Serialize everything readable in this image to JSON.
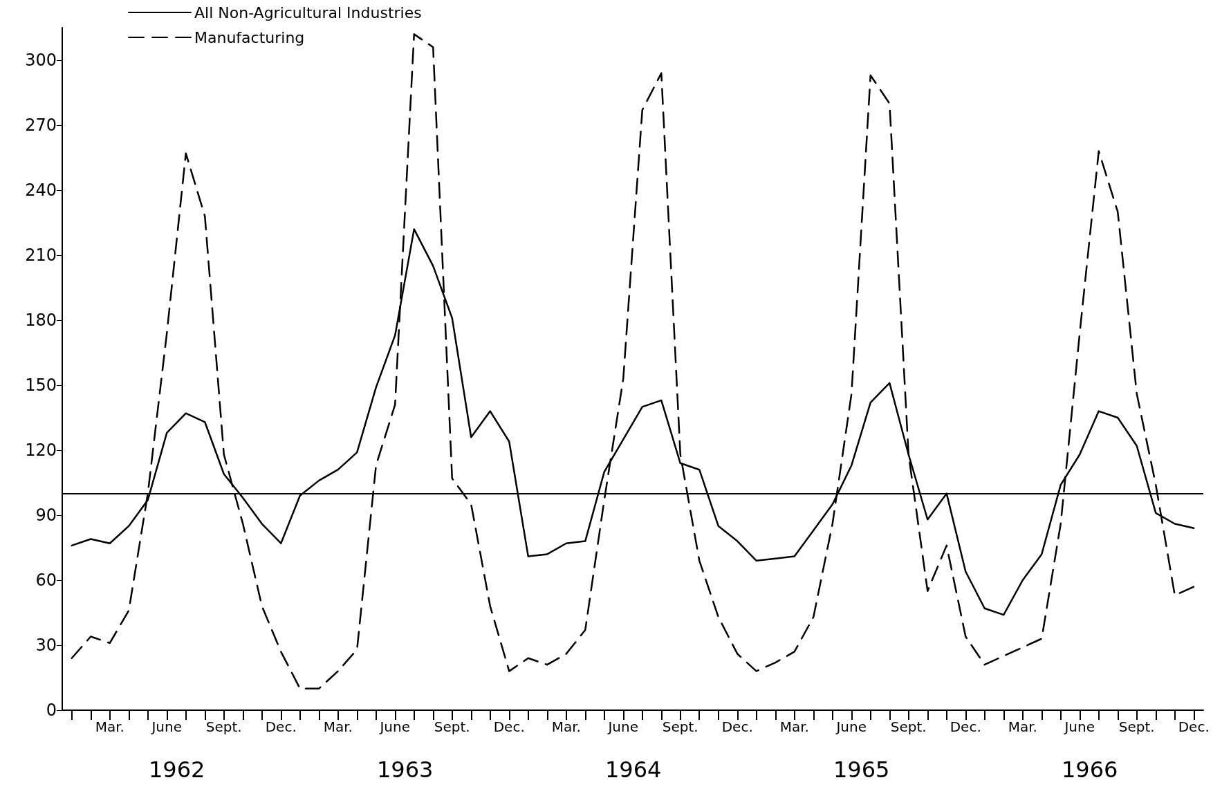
{
  "chart_data": {
    "type": "line",
    "categories": [
      null,
      null,
      "Mar.",
      null,
      null,
      "June",
      null,
      null,
      "Sept.",
      null,
      null,
      "Dec.",
      null,
      null,
      "Mar.",
      null,
      null,
      "June",
      null,
      null,
      "Sept.",
      null,
      null,
      "Dec.",
      null,
      null,
      "Mar.",
      null,
      null,
      "June",
      null,
      null,
      "Sept.",
      null,
      null,
      "Dec.",
      null,
      null,
      "Mar.",
      null,
      null,
      "June",
      null,
      null,
      "Sept.",
      null,
      null,
      "Dec.",
      null,
      null,
      "Mar.",
      null,
      null,
      "June",
      null,
      null,
      "Sept.",
      null,
      null,
      "Dec."
    ],
    "series": [
      {
        "name": "All Non-Agricultural Industries",
        "color": "#000000",
        "line_style": "solid",
        "values": [
          76,
          79,
          77,
          85,
          97,
          128,
          137,
          133,
          109,
          98,
          86,
          77,
          99,
          106,
          111,
          119,
          149,
          173,
          222,
          205,
          181,
          126,
          138,
          124,
          71,
          72,
          77,
          78,
          110,
          125,
          140,
          143,
          114,
          111,
          85,
          78,
          69,
          70,
          71,
          83,
          95,
          113,
          142,
          151,
          118,
          88,
          100,
          64,
          47,
          44,
          60,
          72,
          104,
          118,
          138,
          135,
          122,
          91,
          86,
          84
        ]
      },
      {
        "name": "Manufacturing",
        "color": "#000000",
        "line_style": "dashed",
        "values": [
          24,
          34,
          31,
          46,
          100,
          174,
          257,
          228,
          118,
          86,
          48,
          27,
          10,
          10,
          18,
          28,
          113,
          141,
          312,
          306,
          107,
          95,
          48,
          18,
          24,
          21,
          26,
          37,
          97,
          153,
          277,
          294,
          118,
          69,
          43,
          26,
          18,
          22,
          27,
          43,
          86,
          146,
          293,
          280,
          118,
          55,
          76,
          34,
          21,
          25,
          29,
          33,
          86,
          174,
          258,
          230,
          146,
          104,
          53,
          57
        ]
      }
    ],
    "ylim": [
      0,
      315
    ],
    "yticks": [
      0,
      30,
      60,
      90,
      120,
      150,
      180,
      210,
      240,
      270,
      300
    ],
    "ref_lines": [
      {
        "axis": "y",
        "value": 100,
        "color": "#000000"
      }
    ],
    "annotations": [
      "1962",
      "1963",
      "1964",
      "1965",
      "1966"
    ],
    "grid": false,
    "legend": "top left",
    "marker": "none"
  }
}
